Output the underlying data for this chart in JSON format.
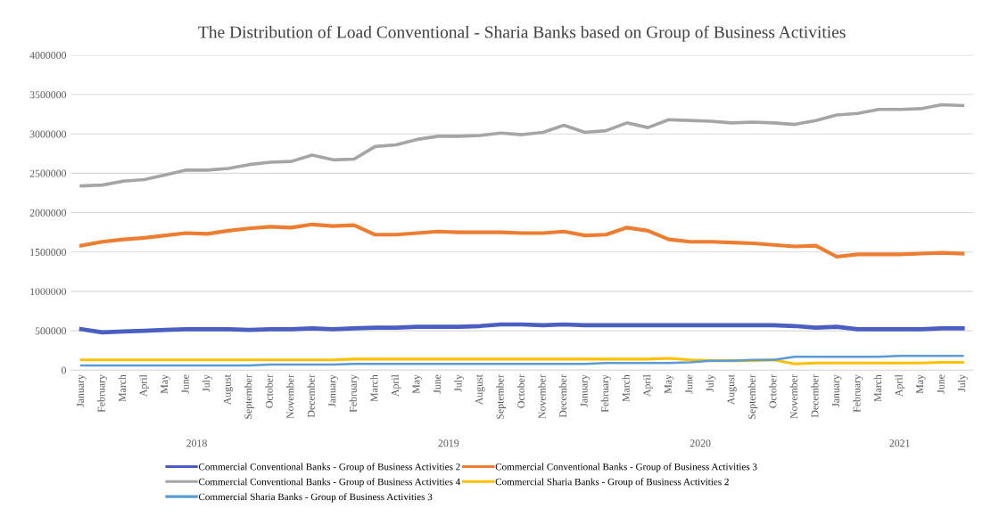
{
  "chart_data": {
    "type": "line",
    "title": "The Distribution of Load Conventional - Sharia Banks based on Group of Business Activities",
    "categories": [
      "January",
      "February",
      "March",
      "April",
      "May",
      "June",
      "July",
      "August",
      "September",
      "October",
      "November",
      "December",
      "January",
      "February",
      "March",
      "April",
      "May",
      "June",
      "July",
      "August",
      "September",
      "October",
      "November",
      "December",
      "January",
      "February",
      "March",
      "April",
      "May",
      "June",
      "July",
      "August",
      "September",
      "October",
      "November",
      "December",
      "January",
      "February",
      "March",
      "April",
      "May",
      "June",
      "July"
    ],
    "annotations": [
      "2018",
      "2019",
      "2020",
      "2021"
    ],
    "series": [
      {
        "name": "Commercial Conventional Banks - Group of Business Activities 2",
        "color": "#4a5fc1",
        "values": [
          520000,
          480000,
          490000,
          500000,
          510000,
          520000,
          520000,
          520000,
          510000,
          520000,
          520000,
          530000,
          520000,
          530000,
          540000,
          540000,
          550000,
          550000,
          550000,
          560000,
          580000,
          580000,
          570000,
          580000,
          570000,
          570000,
          570000,
          570000,
          570000,
          570000,
          570000,
          570000,
          570000,
          570000,
          560000,
          540000,
          550000,
          520000,
          520000,
          520000,
          520000,
          530000,
          530000
        ]
      },
      {
        "name": "Commercial Conventional Banks - Group of Business Activities 3",
        "color": "#ed7d31",
        "values": [
          1580000,
          1630000,
          1660000,
          1680000,
          1710000,
          1740000,
          1730000,
          1770000,
          1800000,
          1820000,
          1810000,
          1850000,
          1830000,
          1840000,
          1720000,
          1720000,
          1740000,
          1760000,
          1750000,
          1750000,
          1750000,
          1740000,
          1740000,
          1760000,
          1710000,
          1720000,
          1810000,
          1770000,
          1660000,
          1630000,
          1630000,
          1620000,
          1610000,
          1590000,
          1570000,
          1580000,
          1440000,
          1470000,
          1470000,
          1470000,
          1480000,
          1490000,
          1480000
        ]
      },
      {
        "name": "Commercial Conventional Banks - Group of Business Activities 4",
        "color": "#a5a5a5",
        "values": [
          2340000,
          2350000,
          2400000,
          2420000,
          2480000,
          2540000,
          2540000,
          2560000,
          2610000,
          2640000,
          2650000,
          2730000,
          2670000,
          2680000,
          2840000,
          2860000,
          2930000,
          2970000,
          2970000,
          2980000,
          3010000,
          2990000,
          3020000,
          3110000,
          3020000,
          3040000,
          3140000,
          3080000,
          3180000,
          3170000,
          3160000,
          3140000,
          3150000,
          3140000,
          3120000,
          3170000,
          3240000,
          3260000,
          3310000,
          3310000,
          3320000,
          3370000,
          3360000
        ]
      },
      {
        "name": "Commercial Sharia Banks - Group of Business Activities 2",
        "color": "#ffc000",
        "values": [
          130000,
          130000,
          130000,
          130000,
          130000,
          130000,
          130000,
          130000,
          130000,
          130000,
          130000,
          130000,
          130000,
          140000,
          140000,
          140000,
          140000,
          140000,
          140000,
          140000,
          140000,
          140000,
          140000,
          140000,
          140000,
          140000,
          140000,
          140000,
          150000,
          130000,
          120000,
          120000,
          120000,
          130000,
          80000,
          90000,
          90000,
          90000,
          90000,
          90000,
          90000,
          100000,
          100000
        ]
      },
      {
        "name": "Commercial Sharia Banks - Group of Business Activities 3",
        "color": "#5b9bd5",
        "values": [
          60000,
          60000,
          60000,
          60000,
          60000,
          60000,
          60000,
          60000,
          60000,
          70000,
          70000,
          70000,
          70000,
          80000,
          80000,
          80000,
          80000,
          80000,
          80000,
          80000,
          80000,
          80000,
          80000,
          80000,
          80000,
          90000,
          90000,
          90000,
          90000,
          100000,
          120000,
          120000,
          130000,
          130000,
          170000,
          170000,
          170000,
          170000,
          170000,
          180000,
          180000,
          180000,
          180000
        ]
      }
    ],
    "ylim": [
      0,
      4000000
    ],
    "yticks": [
      0,
      500000,
      1000000,
      1500000,
      2000000,
      2500000,
      3000000,
      3500000,
      4000000
    ],
    "grid": "y",
    "legend": "bottom",
    "marker": "none",
    "line_style": "solid"
  }
}
